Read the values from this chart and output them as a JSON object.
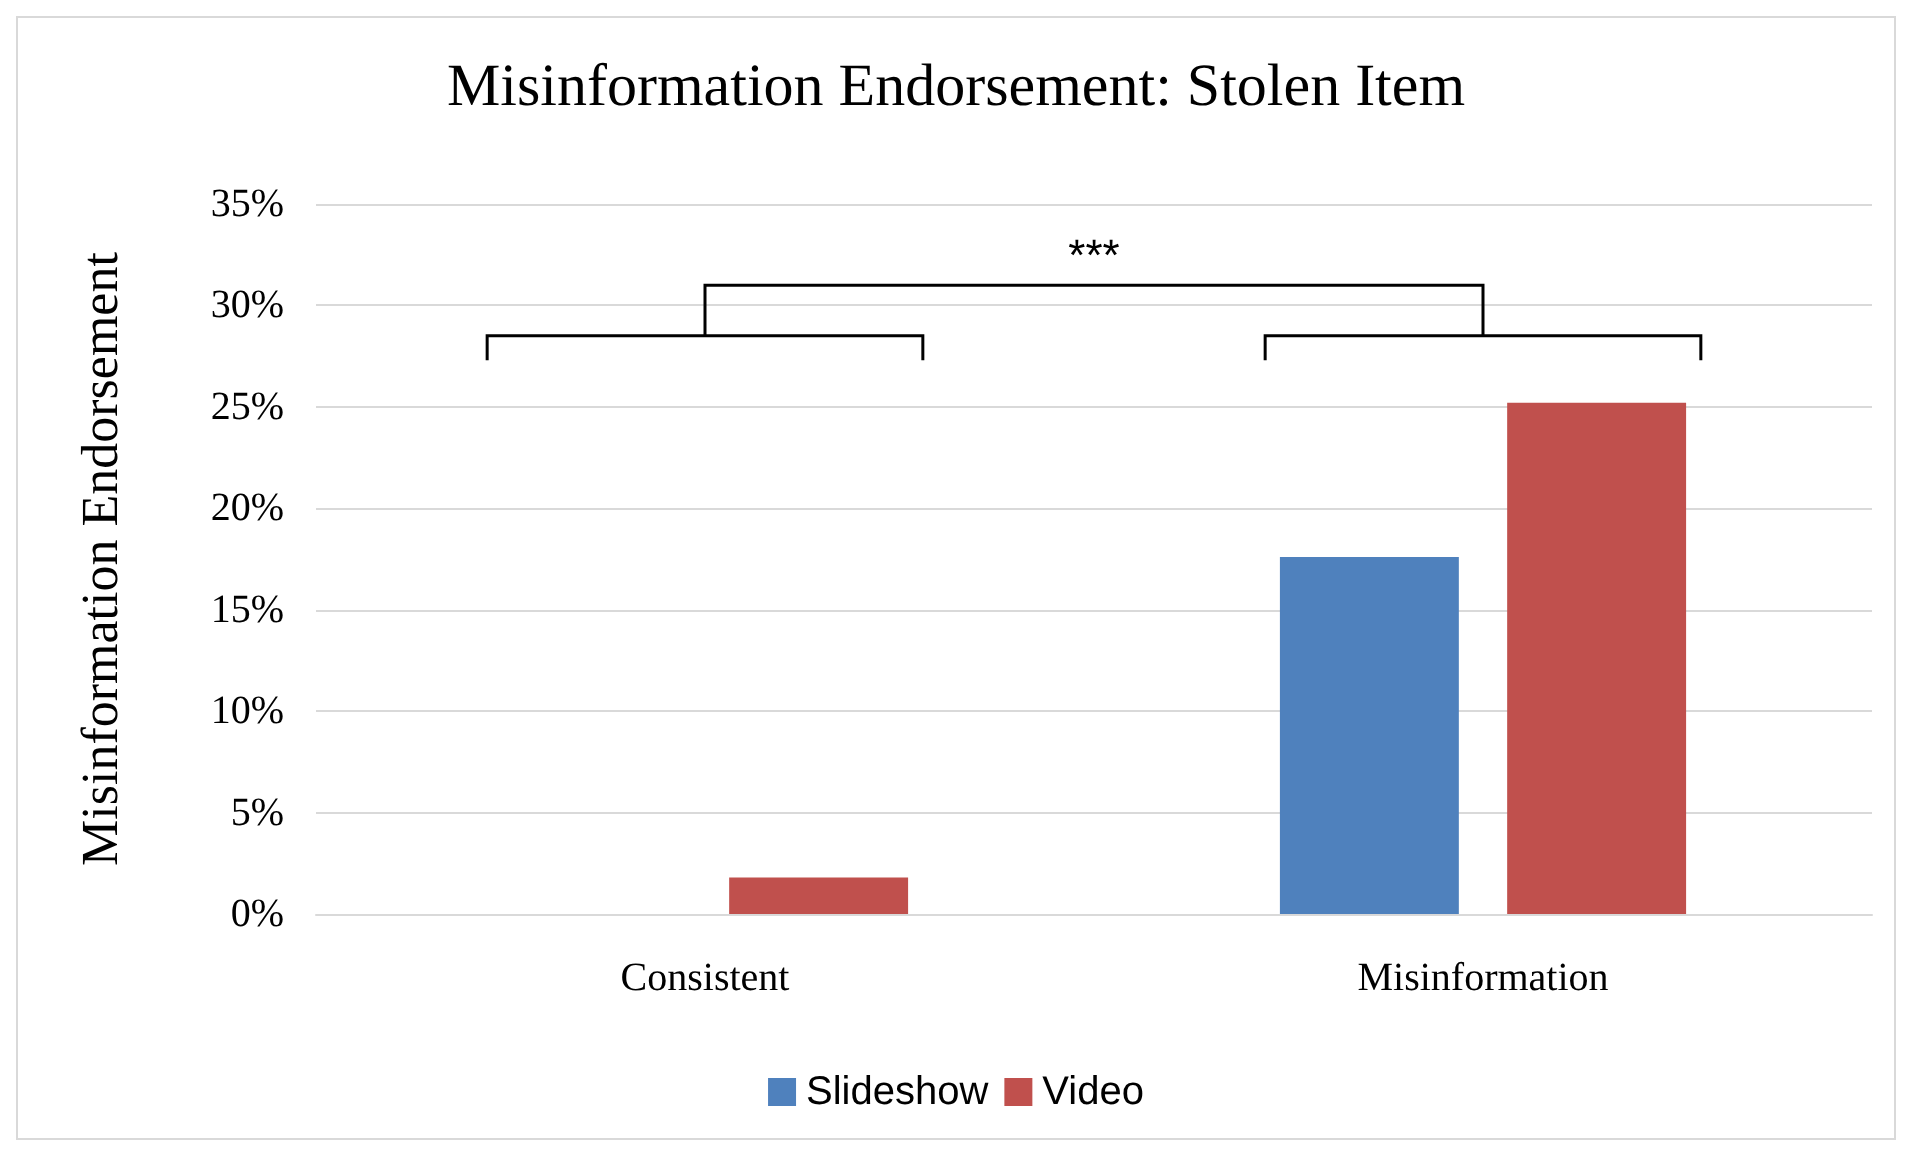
{
  "chart_data": {
    "type": "bar",
    "title": "Misinformation Endorsement: Stolen Item",
    "ylabel": "Misinformation Endorsement",
    "categories": [
      "Consistent",
      "Misinformation"
    ],
    "series": [
      {
        "name": "Slideshow",
        "color": "#4f81bd",
        "values": [
          0,
          17.6
        ]
      },
      {
        "name": "Video",
        "color": "#c0504d",
        "values": [
          1.8,
          25.2
        ]
      }
    ],
    "ylim": [
      0,
      35
    ],
    "yticks": [
      {
        "value": 0,
        "label": "0%"
      },
      {
        "value": 5,
        "label": "5%"
      },
      {
        "value": 10,
        "label": "10%"
      },
      {
        "value": 15,
        "label": "15%"
      },
      {
        "value": 20,
        "label": "20%"
      },
      {
        "value": 25,
        "label": "25%"
      },
      {
        "value": 30,
        "label": "30%"
      },
      {
        "value": 35,
        "label": "35%"
      }
    ],
    "grid": "y",
    "legend": "bottom",
    "annotations": [
      "***"
    ]
  }
}
